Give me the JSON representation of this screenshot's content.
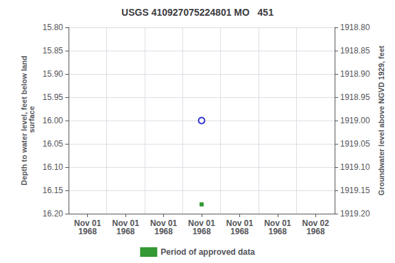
{
  "chart_data": {
    "type": "scatter",
    "title": "USGS 410927075224801 MO   451",
    "y_label": "Depth to water level, feet below land\n surface",
    "y2_label": "Groundwater level above NGVD 1929, feet",
    "categories": [
      "Nov 01\n1968",
      "Nov 01\n1968",
      "Nov 01\n1968",
      "Nov 01\n1968",
      "Nov 01\n1968",
      "Nov 01\n1968",
      "Nov 02\n1968"
    ],
    "series": [
      {
        "color": "#0000cc",
        "marker": "open_circle",
        "values": [
          null,
          null,
          null,
          16.0,
          null,
          null,
          null
        ]
      },
      {
        "name": "Period of approved data",
        "color": "#008000",
        "marker": "square",
        "values": [
          null,
          null,
          null,
          16.18,
          null,
          null,
          null
        ]
      }
    ],
    "ylim": [
      16.2,
      15.8
    ],
    "yticks": [
      {
        "value": 15.8,
        "label": "15.80"
      },
      {
        "value": 15.85,
        "label": "15.85"
      },
      {
        "value": 15.9,
        "label": "15.90"
      },
      {
        "value": 15.95,
        "label": "15.95"
      },
      {
        "value": 16.0,
        "label": "16.00"
      },
      {
        "value": 16.05,
        "label": "16.05"
      },
      {
        "value": 16.1,
        "label": "16.10"
      },
      {
        "value": 16.15,
        "label": "16.15"
      },
      {
        "value": 16.2,
        "label": "16.20"
      }
    ],
    "y2lim": [
      1919.2,
      1918.8
    ],
    "y2ticks": [
      {
        "value": 1919.2,
        "label": "1919.20"
      },
      {
        "value": 1919.15,
        "label": "1919.15"
      },
      {
        "value": 1919.1,
        "label": "1919.10"
      },
      {
        "value": 1919.05,
        "label": "1919.05"
      },
      {
        "value": 1919.0,
        "label": "1919.00"
      },
      {
        "value": 1918.95,
        "label": "1918.95"
      },
      {
        "value": 1918.9,
        "label": "1918.90"
      },
      {
        "value": 1918.85,
        "label": "1918.85"
      },
      {
        "value": 1918.8,
        "label": "1918.80"
      }
    ],
    "grid": true,
    "legend": "bottom"
  }
}
